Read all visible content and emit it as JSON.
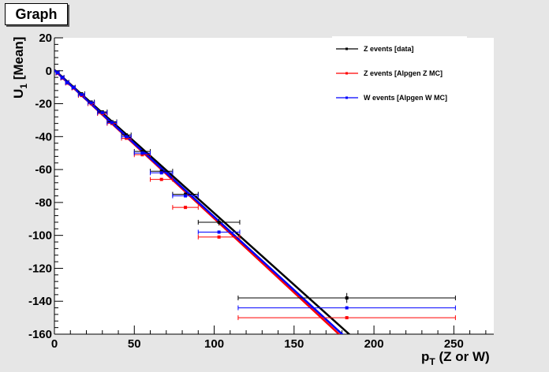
{
  "title": "Graph",
  "chart_data": {
    "type": "scatter",
    "xlabel_main": "p",
    "xlabel_sub": "T",
    "xlabel_rest": " (Z or W)",
    "ylabel_main": "U",
    "ylabel_sub": "1",
    "ylabel_rest": " [Mean]",
    "xlim": [
      0,
      275
    ],
    "ylim": [
      -160,
      20
    ],
    "xticks": [
      0,
      50,
      100,
      150,
      200,
      250
    ],
    "yticks": [
      20,
      0,
      -20,
      -40,
      -60,
      -80,
      -100,
      -120,
      -140,
      -160
    ],
    "legend_position": "top-right",
    "series": [
      {
        "name": "Z events [data]",
        "color": "#000000",
        "fit": {
          "slope": -0.87,
          "intercept": 0.5
        },
        "points": [
          {
            "x": 2,
            "y": -1,
            "xerr": 1
          },
          {
            "x": 5,
            "y": -4,
            "xerr": 1
          },
          {
            "x": 8,
            "y": -7,
            "xerr": 1
          },
          {
            "x": 12,
            "y": -10,
            "xerr": 1
          },
          {
            "x": 17,
            "y": -14,
            "xerr": 2
          },
          {
            "x": 23,
            "y": -19,
            "xerr": 2
          },
          {
            "x": 30,
            "y": -25,
            "xerr": 3
          },
          {
            "x": 36,
            "y": -31,
            "xerr": 3
          },
          {
            "x": 45,
            "y": -39,
            "xerr": 3
          },
          {
            "x": 55,
            "y": -49,
            "xerr": 5
          },
          {
            "x": 67,
            "y": -61,
            "xerr": 7
          },
          {
            "x": 82,
            "y": -75,
            "xerr": 8
          },
          {
            "x": 103,
            "y": -92,
            "xerr": 13,
            "yerr": 2
          },
          {
            "x": 183,
            "y": -138,
            "xerr": 68,
            "yerr": 3
          }
        ]
      },
      {
        "name": "Z events [Alpgen Z MC]",
        "color": "#ff0000",
        "fit": {
          "slope": -0.9,
          "intercept": 0.3
        },
        "points": [
          {
            "x": 2,
            "y": -1.5,
            "xerr": 1
          },
          {
            "x": 5,
            "y": -4.5,
            "xerr": 1
          },
          {
            "x": 8,
            "y": -7.5,
            "xerr": 1
          },
          {
            "x": 12,
            "y": -10.5,
            "xerr": 1
          },
          {
            "x": 17,
            "y": -15,
            "xerr": 2
          },
          {
            "x": 23,
            "y": -20,
            "xerr": 2
          },
          {
            "x": 30,
            "y": -26,
            "xerr": 3
          },
          {
            "x": 36,
            "y": -32,
            "xerr": 3
          },
          {
            "x": 45,
            "y": -41,
            "xerr": 3
          },
          {
            "x": 55,
            "y": -51,
            "xerr": 5
          },
          {
            "x": 67,
            "y": -66,
            "xerr": 7
          },
          {
            "x": 82,
            "y": -83,
            "xerr": 8
          },
          {
            "x": 103,
            "y": -101,
            "xerr": 13
          },
          {
            "x": 183,
            "y": -150,
            "xerr": 68
          }
        ]
      },
      {
        "name": "W events [Alpgen W MC]",
        "color": "#0000ff",
        "fit": {
          "slope": -0.89,
          "intercept": 0.3
        },
        "points": [
          {
            "x": 2,
            "y": -1.2,
            "xerr": 1
          },
          {
            "x": 5,
            "y": -4.2,
            "xerr": 1
          },
          {
            "x": 8,
            "y": -7.2,
            "xerr": 1
          },
          {
            "x": 12,
            "y": -10.2,
            "xerr": 1
          },
          {
            "x": 17,
            "y": -14.5,
            "xerr": 2
          },
          {
            "x": 23,
            "y": -19.5,
            "xerr": 2
          },
          {
            "x": 30,
            "y": -25.5,
            "xerr": 3
          },
          {
            "x": 36,
            "y": -31.5,
            "xerr": 3
          },
          {
            "x": 45,
            "y": -40,
            "xerr": 3
          },
          {
            "x": 55,
            "y": -50,
            "xerr": 5
          },
          {
            "x": 67,
            "y": -62,
            "xerr": 7
          },
          {
            "x": 82,
            "y": -76,
            "xerr": 8
          },
          {
            "x": 103,
            "y": -98,
            "xerr": 13
          },
          {
            "x": 183,
            "y": -144,
            "xerr": 68
          }
        ]
      }
    ]
  }
}
